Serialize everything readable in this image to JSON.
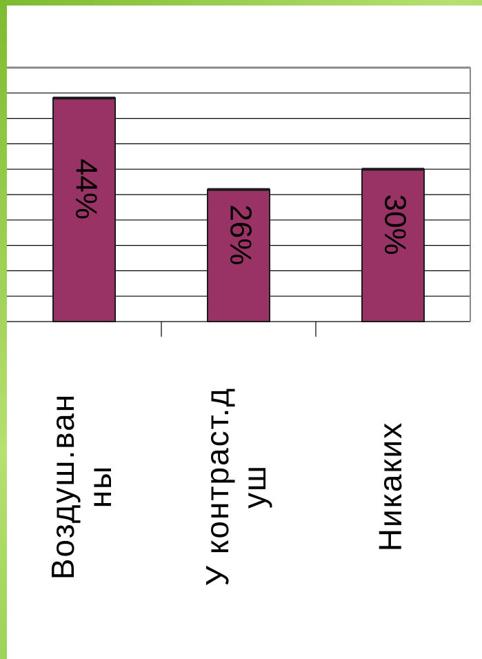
{
  "chart_data": {
    "type": "bar",
    "categories": [
      "Воздуш.ван ны",
      "У контраст.д уш",
      "Никаких"
    ],
    "category_lines": [
      [
        "Воздуш.ван",
        "ны"
      ],
      [
        "У контраст.д",
        "уш"
      ],
      [
        "Никаких"
      ]
    ],
    "values": [
      44,
      26,
      30
    ],
    "value_labels": [
      "44%",
      "26%",
      "30%"
    ],
    "unit": "%",
    "ylim": [
      0,
      50
    ],
    "grid": true,
    "orientation": "rotated-90",
    "colors": {
      "bar": "#993366",
      "bar_edge": "#1a1a1a",
      "grid": "#000000",
      "background": "#ffffff",
      "frame": "#8cc63f"
    }
  }
}
